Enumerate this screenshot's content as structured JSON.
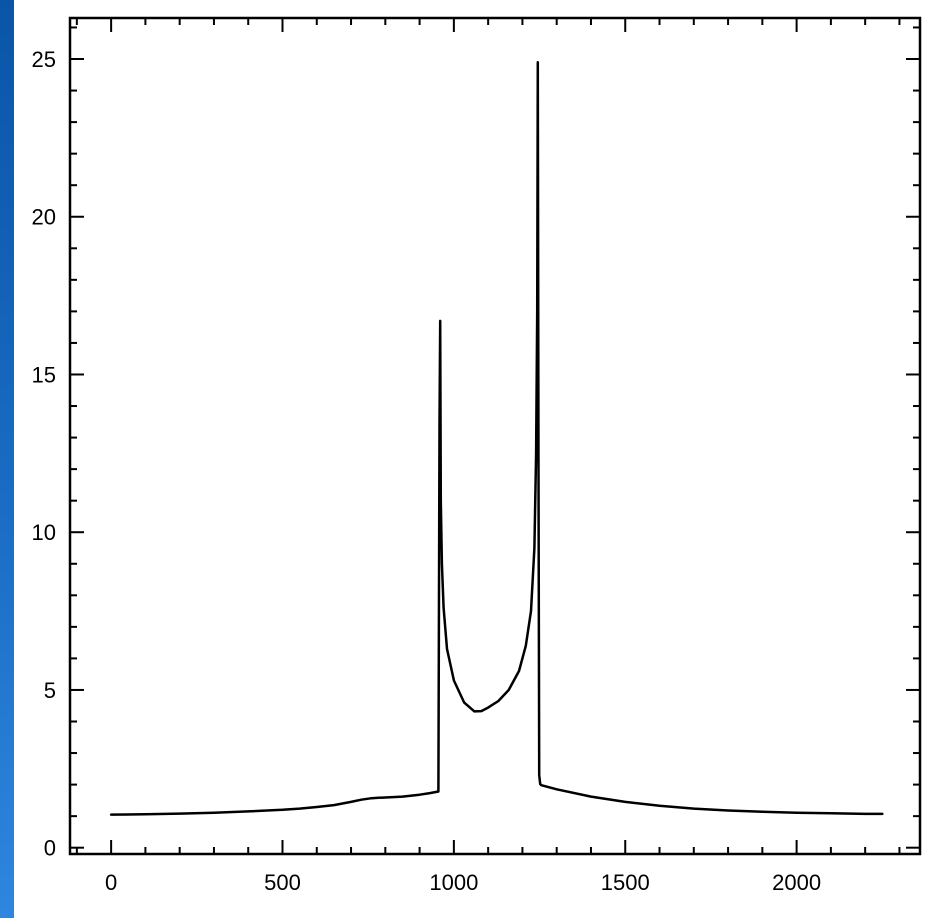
{
  "colors": {
    "background_gradient_top": "#0a55a8",
    "background_gradient_bottom": "#2f86de",
    "panel": "#ffffff",
    "line": "#000000"
  },
  "chart_data": {
    "type": "line",
    "title": "",
    "xlabel": "",
    "ylabel": "",
    "xlim": [
      -120,
      2360
    ],
    "ylim": [
      -0.2,
      26.3
    ],
    "x_ticks": [
      "0",
      "500",
      "1000",
      "1500",
      "2000"
    ],
    "x_tick_values": [
      0,
      500,
      1000,
      1500,
      2000
    ],
    "y_ticks": [
      "0",
      "5",
      "10",
      "15",
      "20",
      "25"
    ],
    "y_tick_values": [
      0,
      5,
      10,
      15,
      20,
      25
    ],
    "x_minor_step": 100,
    "y_minor_step": 1,
    "grid": false,
    "legend": "none",
    "series": [
      {
        "x": [
          0,
          100,
          200,
          300,
          400,
          500,
          550,
          600,
          650,
          700,
          730,
          760,
          780,
          800,
          850,
          900,
          930,
          955,
          958,
          960,
          962,
          965,
          970,
          980,
          1000,
          1030,
          1060,
          1080,
          1100,
          1130,
          1160,
          1190,
          1210,
          1225,
          1235,
          1240,
          1243,
          1245,
          1247,
          1249,
          1252,
          1255,
          1300,
          1400,
          1500,
          1600,
          1700,
          1800,
          1900,
          2000,
          2100,
          2200,
          2250
        ],
        "y": [
          1.05,
          1.06,
          1.08,
          1.11,
          1.15,
          1.2,
          1.24,
          1.29,
          1.35,
          1.45,
          1.52,
          1.57,
          1.58,
          1.59,
          1.62,
          1.68,
          1.73,
          1.78,
          13.5,
          16.7,
          11.0,
          9.0,
          7.6,
          6.3,
          5.3,
          4.6,
          4.32,
          4.33,
          4.44,
          4.65,
          5.0,
          5.6,
          6.4,
          7.5,
          9.5,
          12.5,
          17.0,
          24.9,
          12.0,
          2.3,
          2.02,
          1.98,
          1.85,
          1.62,
          1.45,
          1.33,
          1.24,
          1.18,
          1.14,
          1.11,
          1.09,
          1.07,
          1.07
        ]
      }
    ]
  }
}
